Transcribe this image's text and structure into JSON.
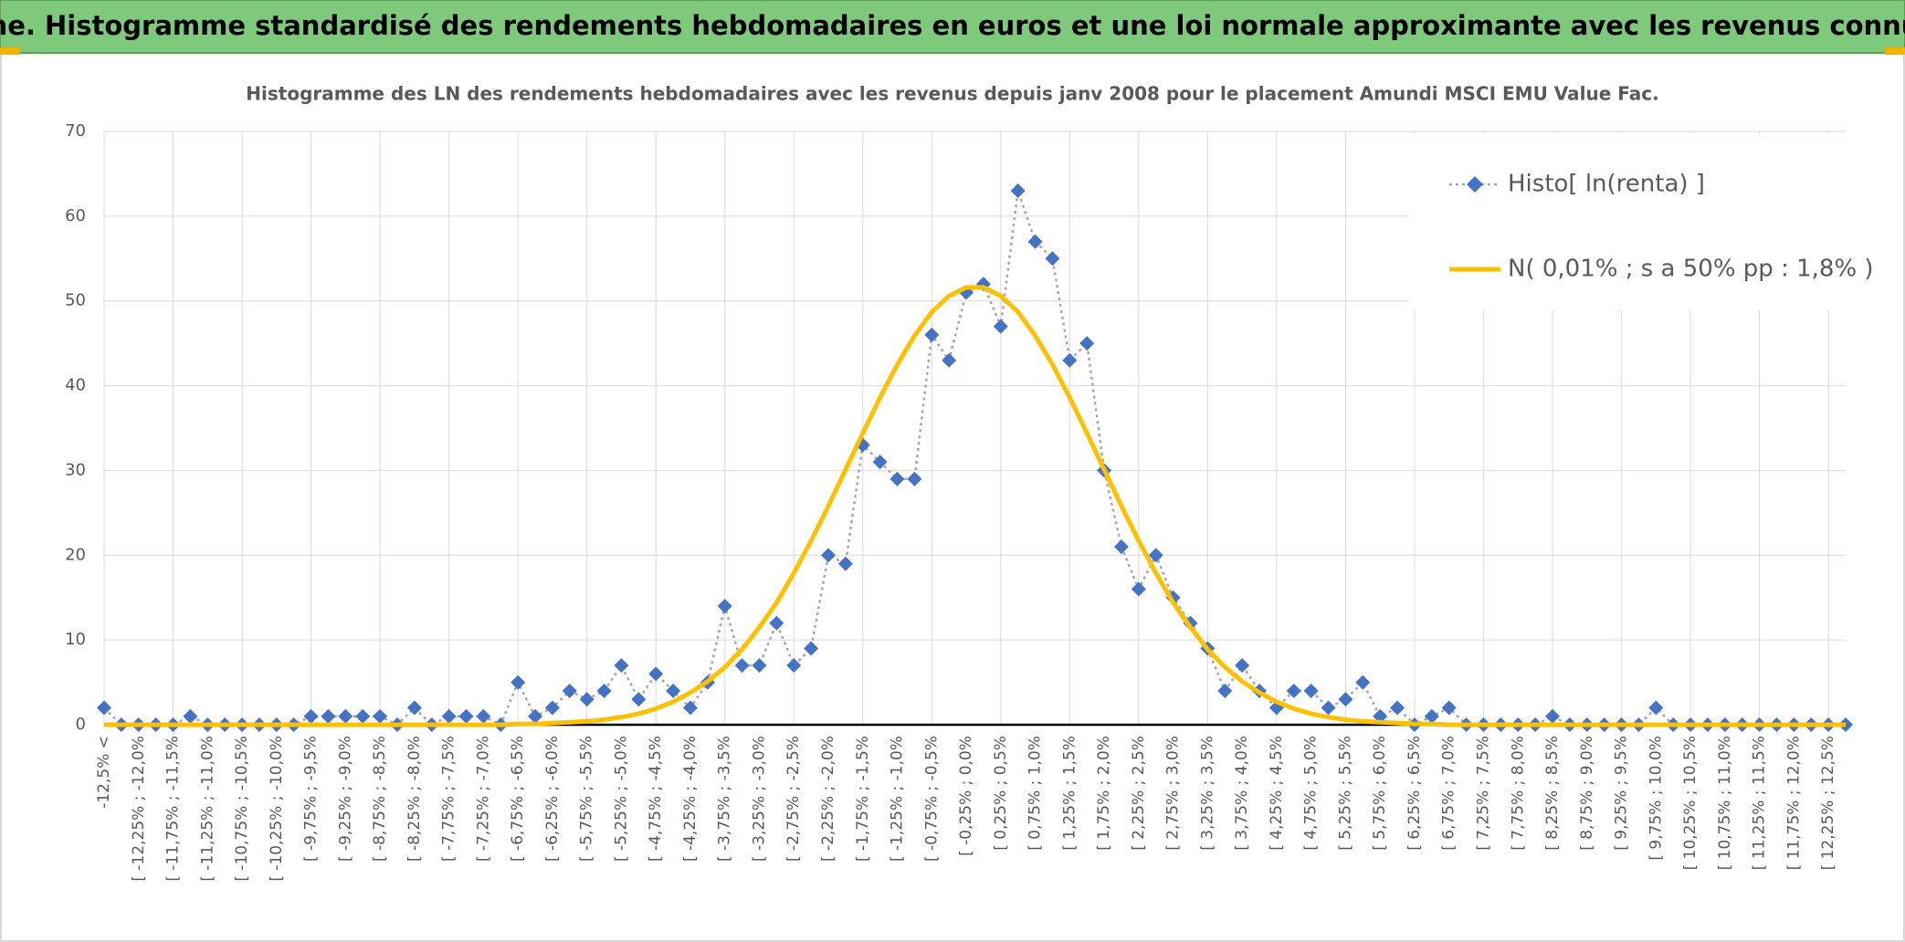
{
  "chart_data": {
    "type": "line",
    "title": "ADAM Informe. Histogramme standardisé des rendements hebdomadaires en euros et une loi normale approximante avec les revenus connus distribués",
    "subtitle": "Histogramme des LN des rendements hebdomadaires avec les revenus depuis janv 2008 pour le placement Amundi MSCI EMU Value Fac.",
    "categories": [
      "-12,5% <",
      null,
      "[ -12,25% ; -12,0%",
      null,
      "[ -11,75% ; -11,5%",
      null,
      "[ -11,25% ; -11,0%",
      null,
      "[ -10,75% ; -10,5%",
      null,
      "[ -10,25% ; -10,0%",
      null,
      "[ -9,75% ; -9,5%",
      null,
      "[ -9,25% ; -9,0%",
      null,
      "[ -8,75% ; -8,5%",
      null,
      "[ -8,25% ; -8,0%",
      null,
      "[ -7,75% ; -7,5%",
      null,
      "[ -7,25% ; -7,0%",
      null,
      "[ -6,75% ; -6,5%",
      null,
      "[ -6,25% ; -6,0%",
      null,
      "[ -5,75% ; -5,5%",
      null,
      "[ -5,25% ; -5,0%",
      null,
      "[ -4,75% ; -4,5%",
      null,
      "[ -4,25% ; -4,0%",
      null,
      "[ -3,75% ; -3,5%",
      null,
      "[ -3,25% ; -3,0%",
      null,
      "[ -2,75% ; -2,5%",
      null,
      "[ -2,25% ; -2,0%",
      null,
      "[ -1,75% ; -1,5%",
      null,
      "[ -1,25% ; -1,0%",
      null,
      "[ -0,75% ; -0,5%",
      null,
      "[ -0,25% ; 0,0%",
      null,
      "[ 0,25% ; 0,5%",
      null,
      "[ 0,75% ; 1,0%",
      null,
      "[ 1,25% ; 1,5%",
      null,
      "[ 1,75% ; 2,0%",
      null,
      "[ 2,25% ; 2,5%",
      null,
      "[ 2,75% ; 3,0%",
      null,
      "[ 3,25% ; 3,5%",
      null,
      "[ 3,75% ; 4,0%",
      null,
      "[ 4,25% ; 4,5%",
      null,
      "[ 4,75% ; 5,0%",
      null,
      "[ 5,25% ; 5,5%",
      null,
      "[ 5,75% ; 6,0%",
      null,
      "[ 6,25% ; 6,5%",
      null,
      "[ 6,75% ; 7,0%",
      null,
      "[ 7,25% ; 7,5%",
      null,
      "[ 7,75% ; 8,0%",
      null,
      "[ 8,25% ; 8,5%",
      null,
      "[ 8,75% ; 9,0%",
      null,
      "[ 9,25% ; 9,5%",
      null,
      "[ 9,75% ; 10,0%",
      null,
      "[ 10,25% ; 10,5%",
      null,
      "[ 10,75% ; 11,0%",
      null,
      "[ 11,25% ; 11,5%",
      null,
      "[ 11,75% ; 12,0%",
      null,
      "[ 12,25% ; 12,5%",
      null
    ],
    "series": [
      {
        "name": "Histo[ ln(renta) ]",
        "color": "#4472c4",
        "line_color": "#a6a6a6",
        "dash": "dotted",
        "marker": "diamond",
        "values": [
          2,
          0,
          0,
          0,
          0,
          1,
          0,
          0,
          0,
          0,
          0,
          0,
          1,
          1,
          1,
          1,
          1,
          0,
          2,
          0,
          1,
          1,
          1,
          0,
          5,
          1,
          2,
          4,
          3,
          4,
          7,
          3,
          6,
          4,
          2,
          5,
          14,
          7,
          7,
          12,
          7,
          9,
          20,
          19,
          33,
          31,
          29,
          29,
          46,
          43,
          51,
          52,
          47,
          63,
          57,
          55,
          43,
          45,
          30,
          21,
          16,
          20,
          15,
          12,
          9,
          4,
          7,
          4,
          2,
          4,
          4,
          2,
          3,
          5,
          1,
          2,
          0,
          1,
          2,
          0,
          0,
          0,
          0,
          0,
          1,
          0,
          0,
          0,
          0,
          0,
          2,
          0,
          0,
          0,
          0,
          0,
          0,
          0,
          0,
          0,
          0,
          0
        ]
      },
      {
        "name": "N( 0,01% ; s a 50% pp : 1,8% )",
        "color": "#ffc000",
        "dash": "solid",
        "marker": "none",
        "values": [
          0,
          0,
          0,
          0,
          0,
          0,
          0,
          0,
          0,
          0,
          0,
          0,
          0,
          0,
          0,
          0,
          0,
          0,
          0,
          0,
          0,
          0,
          0,
          0,
          0.1,
          0.1,
          0.2,
          0.3,
          0.4,
          0.6,
          0.9,
          1.3,
          1.9,
          2.7,
          3.8,
          5.1,
          6.8,
          8.9,
          11.5,
          14.4,
          17.9,
          21.7,
          25.8,
          30.1,
          34.4,
          38.6,
          42.5,
          45.9,
          48.7,
          50.6,
          51.6,
          51.6,
          50.6,
          48.7,
          45.9,
          42.5,
          38.6,
          34.4,
          30.1,
          25.8,
          21.7,
          17.9,
          14.4,
          11.5,
          8.9,
          6.8,
          5.1,
          3.8,
          2.7,
          1.9,
          1.3,
          0.9,
          0.6,
          0.4,
          0.3,
          0.2,
          0.1,
          0.1,
          0,
          0,
          0,
          0,
          0,
          0,
          0,
          0,
          0,
          0,
          0,
          0,
          0,
          0,
          0,
          0,
          0,
          0,
          0,
          0,
          0,
          0,
          0,
          0
        ]
      }
    ],
    "ylim": [
      0,
      70
    ],
    "yticks": [
      0,
      10,
      20,
      30,
      40,
      50,
      60,
      70
    ],
    "grid": true,
    "legend": "top-right"
  }
}
